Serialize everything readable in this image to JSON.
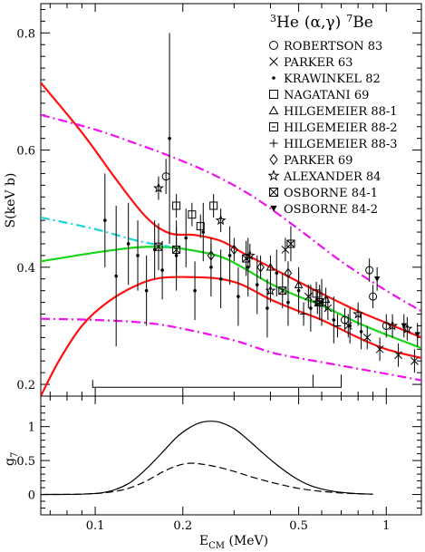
{
  "chart_data": [
    {
      "type": "scatter",
      "panel": "upper",
      "title_parts": {
        "mass_a": "3",
        "element_a": "He",
        "reaction": "(α,γ)",
        "mass_b": "7",
        "element_b": "Be"
      },
      "xlabel": {
        "main": "E",
        "sub": "CM",
        "unit": " (MeV)"
      },
      "ylabel": "S(keV b)",
      "x_scale": "log",
      "xlim": [
        0.065,
        1.32
      ],
      "ylim": [
        0.18,
        0.85
      ],
      "y_ticks": [
        0.2,
        0.4,
        0.6,
        0.8
      ],
      "y_tick_labels": [
        "0.2",
        "0.4",
        "0.6",
        "0.8"
      ],
      "x_ticks": [
        0.1,
        0.2,
        0.5,
        1.0
      ],
      "x_tick_labels": [
        "0.1",
        "0.2",
        "0.5",
        "1"
      ],
      "legend_placement": "top-right",
      "legend": [
        {
          "marker": "circle",
          "label": "ROBERTSON 83"
        },
        {
          "marker": "cross",
          "label": "PARKER 63"
        },
        {
          "marker": "dot",
          "label": "KRAWINKEL 82"
        },
        {
          "marker": "square",
          "label": "NAGATANI 69"
        },
        {
          "marker": "triangle",
          "label": "HILGEMEIER 88-1"
        },
        {
          "marker": "square-notch",
          "label": "HILGEMEIER 88-2"
        },
        {
          "marker": "plus",
          "label": "HILGEMEIER 88-3"
        },
        {
          "marker": "diamond",
          "label": "PARKER 69"
        },
        {
          "marker": "star",
          "label": "ALEXANDER 84"
        },
        {
          "marker": "square-cross",
          "label": "OSBORNE 84-1"
        },
        {
          "marker": "tri-down",
          "label": "OSBORNE 84-2"
        }
      ],
      "bracket": {
        "x_left": 0.098,
        "x_right": 0.7,
        "x_inner": 0.56,
        "y": 0.195
      },
      "curves": [
        {
          "color": "#ff1010",
          "style": "solid",
          "x": [
            0.065,
            0.09,
            0.12,
            0.15,
            0.18,
            0.22,
            0.27,
            0.32,
            0.4,
            0.5,
            0.6,
            0.8,
            1.0,
            1.32
          ],
          "y": [
            0.715,
            0.63,
            0.545,
            0.485,
            0.458,
            0.455,
            0.445,
            0.425,
            0.4,
            0.375,
            0.355,
            0.325,
            0.305,
            0.28
          ]
        },
        {
          "color": "#ff1010",
          "style": "solid",
          "x": [
            0.065,
            0.075,
            0.09,
            0.11,
            0.14,
            0.17,
            0.22,
            0.27,
            0.32,
            0.4,
            0.5,
            0.6,
            0.8,
            1.0,
            1.32
          ],
          "y": [
            0.18,
            0.24,
            0.3,
            0.34,
            0.37,
            0.382,
            0.383,
            0.38,
            0.37,
            0.345,
            0.325,
            0.31,
            0.28,
            0.26,
            0.245
          ]
        },
        {
          "color": "#16d616",
          "style": "solid",
          "x": [
            0.065,
            0.1,
            0.14,
            0.18,
            0.22,
            0.27,
            0.32,
            0.4,
            0.5,
            0.6,
            0.8,
            1.0,
            1.32
          ],
          "y": [
            0.41,
            0.425,
            0.434,
            0.434,
            0.428,
            0.418,
            0.4,
            0.372,
            0.35,
            0.335,
            0.305,
            0.285,
            0.262
          ]
        },
        {
          "color": "#16d6d6",
          "style": "dashdot",
          "x": [
            0.065,
            0.1,
            0.14,
            0.18
          ],
          "y": [
            0.485,
            0.465,
            0.445,
            0.435
          ]
        },
        {
          "color": "#ee10ee",
          "style": "dashdot",
          "x": [
            0.065,
            0.1,
            0.14,
            0.18,
            0.25,
            0.35,
            0.5,
            0.7,
            1.0,
            1.32
          ],
          "y": [
            0.66,
            0.635,
            0.61,
            0.59,
            0.56,
            0.52,
            0.465,
            0.41,
            0.36,
            0.325
          ]
        },
        {
          "color": "#ee10ee",
          "style": "dashdot",
          "x": [
            0.065,
            0.1,
            0.15,
            0.2,
            0.3,
            0.4,
            0.5,
            0.7,
            1.0,
            1.32
          ],
          "y": [
            0.312,
            0.31,
            0.305,
            0.295,
            0.275,
            0.255,
            0.245,
            0.232,
            0.218,
            0.207
          ]
        }
      ],
      "points": [
        {
          "marker": "circle",
          "x": 0.175,
          "y": 0.555,
          "err": 0.03
        },
        {
          "marker": "circle",
          "x": 0.875,
          "y": 0.395,
          "err": 0.02
        },
        {
          "marker": "circle",
          "x": 0.9,
          "y": 0.35,
          "err": 0.02
        },
        {
          "marker": "circle",
          "x": 0.72,
          "y": 0.31,
          "err": 0.02
        },
        {
          "marker": "circle",
          "x": 1.0,
          "y": 0.3,
          "err": 0.02
        },
        {
          "marker": "dot",
          "x": 0.108,
          "y": 0.48,
          "err": 0.08
        },
        {
          "marker": "dot",
          "x": 0.118,
          "y": 0.385,
          "err": 0.12
        },
        {
          "marker": "dot",
          "x": 0.13,
          "y": 0.44,
          "err": 0.07
        },
        {
          "marker": "dot",
          "x": 0.14,
          "y": 0.42,
          "err": 0.06
        },
        {
          "marker": "dot",
          "x": 0.15,
          "y": 0.36,
          "err": 0.06
        },
        {
          "marker": "dot",
          "x": 0.16,
          "y": 0.43,
          "err": 0.05
        },
        {
          "marker": "dot",
          "x": 0.17,
          "y": 0.395,
          "err": 0.05
        },
        {
          "marker": "dot",
          "x": 0.18,
          "y": 0.62,
          "err": 0.18
        },
        {
          "marker": "dot",
          "x": 0.19,
          "y": 0.42,
          "err": 0.06
        },
        {
          "marker": "dot",
          "x": 0.205,
          "y": 0.45,
          "err": 0.05
        },
        {
          "marker": "dot",
          "x": 0.22,
          "y": 0.36,
          "err": 0.05
        },
        {
          "marker": "dot",
          "x": 0.235,
          "y": 0.46,
          "err": 0.05
        },
        {
          "marker": "dot",
          "x": 0.25,
          "y": 0.4,
          "err": 0.05
        },
        {
          "marker": "dot",
          "x": 0.27,
          "y": 0.38,
          "err": 0.05
        },
        {
          "marker": "dot",
          "x": 0.29,
          "y": 0.42,
          "err": 0.05
        },
        {
          "marker": "dot",
          "x": 0.31,
          "y": 0.35,
          "err": 0.05
        },
        {
          "marker": "dot",
          "x": 0.335,
          "y": 0.4,
          "err": 0.05
        },
        {
          "marker": "dot",
          "x": 0.36,
          "y": 0.37,
          "err": 0.05
        },
        {
          "marker": "dot",
          "x": 0.39,
          "y": 0.33,
          "err": 0.05
        },
        {
          "marker": "dot",
          "x": 0.42,
          "y": 0.39,
          "err": 0.04
        },
        {
          "marker": "dot",
          "x": 0.46,
          "y": 0.34,
          "err": 0.04
        },
        {
          "marker": "dot",
          "x": 0.5,
          "y": 0.36,
          "err": 0.04
        },
        {
          "marker": "dot",
          "x": 0.55,
          "y": 0.33,
          "err": 0.04
        },
        {
          "marker": "dot",
          "x": 0.6,
          "y": 0.34,
          "err": 0.04
        },
        {
          "marker": "dot",
          "x": 0.66,
          "y": 0.31,
          "err": 0.04
        },
        {
          "marker": "dot",
          "x": 0.75,
          "y": 0.3,
          "err": 0.03
        },
        {
          "marker": "dot",
          "x": 0.82,
          "y": 0.29,
          "err": 0.03
        },
        {
          "marker": "square",
          "x": 0.19,
          "y": 0.505,
          "err": 0.02
        },
        {
          "marker": "square",
          "x": 0.215,
          "y": 0.49,
          "err": 0.02
        },
        {
          "marker": "square",
          "x": 0.255,
          "y": 0.505,
          "err": 0.02
        },
        {
          "marker": "square",
          "x": 0.23,
          "y": 0.47,
          "err": 0.02
        },
        {
          "marker": "square",
          "x": 0.575,
          "y": 0.355,
          "err": 0.02
        },
        {
          "marker": "triangle",
          "x": 0.4,
          "y": 0.4,
          "err": 0.02
        },
        {
          "marker": "triangle",
          "x": 0.5,
          "y": 0.37,
          "err": 0.02
        },
        {
          "marker": "triangle",
          "x": 0.62,
          "y": 0.345,
          "err": 0.02
        },
        {
          "marker": "cross",
          "x": 0.45,
          "y": 0.43,
          "err": 0.02
        },
        {
          "marker": "cross",
          "x": 0.54,
          "y": 0.35,
          "err": 0.02
        },
        {
          "marker": "cross",
          "x": 0.63,
          "y": 0.33,
          "err": 0.02
        },
        {
          "marker": "cross",
          "x": 0.74,
          "y": 0.3,
          "err": 0.02
        },
        {
          "marker": "cross",
          "x": 0.86,
          "y": 0.28,
          "err": 0.02
        },
        {
          "marker": "cross",
          "x": 0.95,
          "y": 0.26,
          "err": 0.02
        },
        {
          "marker": "cross",
          "x": 1.1,
          "y": 0.25,
          "err": 0.02
        },
        {
          "marker": "cross",
          "x": 1.25,
          "y": 0.24,
          "err": 0.02
        },
        {
          "marker": "plus",
          "x": 0.52,
          "y": 0.32,
          "err": 0.02
        },
        {
          "marker": "plus",
          "x": 0.68,
          "y": 0.3,
          "err": 0.02
        },
        {
          "marker": "diamond",
          "x": 0.25,
          "y": 0.42,
          "err": 0.02
        },
        {
          "marker": "diamond",
          "x": 0.3,
          "y": 0.43,
          "err": 0.02
        },
        {
          "marker": "diamond",
          "x": 0.37,
          "y": 0.4,
          "err": 0.02
        },
        {
          "marker": "diamond",
          "x": 0.46,
          "y": 0.39,
          "err": 0.02
        },
        {
          "marker": "star",
          "x": 0.165,
          "y": 0.535,
          "err": 0.02
        },
        {
          "marker": "star",
          "x": 0.27,
          "y": 0.48,
          "err": 0.02
        },
        {
          "marker": "star",
          "x": 0.34,
          "y": 0.42,
          "err": 0.02
        },
        {
          "marker": "star",
          "x": 0.4,
          "y": 0.36,
          "err": 0.02
        },
        {
          "marker": "star",
          "x": 0.58,
          "y": 0.34,
          "err": 0.02
        },
        {
          "marker": "star",
          "x": 0.8,
          "y": 0.32,
          "err": 0.02
        },
        {
          "marker": "star",
          "x": 1.05,
          "y": 0.3,
          "err": 0.02
        },
        {
          "marker": "star",
          "x": 1.18,
          "y": 0.295,
          "err": 0.02
        },
        {
          "marker": "square-cross",
          "x": 0.165,
          "y": 0.435,
          "err": 0.04
        },
        {
          "marker": "square-cross",
          "x": 0.19,
          "y": 0.43,
          "err": 0.04
        },
        {
          "marker": "square-cross",
          "x": 0.33,
          "y": 0.415,
          "err": 0.03
        },
        {
          "marker": "square-cross",
          "x": 0.44,
          "y": 0.36,
          "err": 0.03
        },
        {
          "marker": "square-cross",
          "x": 0.59,
          "y": 0.34,
          "err": 0.03
        },
        {
          "marker": "square-cross",
          "x": 0.47,
          "y": 0.44,
          "err": 0.03
        },
        {
          "marker": "tri-down",
          "x": 0.93,
          "y": 0.38,
          "err": 0.02
        },
        {
          "marker": "tri-down",
          "x": 1.15,
          "y": 0.3,
          "err": 0.02
        },
        {
          "marker": "tri-down",
          "x": 1.28,
          "y": 0.285,
          "err": 0.02
        }
      ]
    },
    {
      "type": "line",
      "panel": "lower",
      "ylabel": {
        "main": "g",
        "sub": "7"
      },
      "x_scale": "log",
      "xlim": [
        0.065,
        1.32
      ],
      "ylim": [
        -0.3,
        1.45
      ],
      "y_ticks": [
        0,
        0.5,
        1.0
      ],
      "y_tick_labels": [
        "0",
        "0.5",
        "1"
      ],
      "series": [
        {
          "style": "solid",
          "x": [
            0.065,
            0.09,
            0.11,
            0.13,
            0.15,
            0.17,
            0.19,
            0.21,
            0.23,
            0.25,
            0.27,
            0.3,
            0.33,
            0.37,
            0.42,
            0.48,
            0.55,
            0.65,
            0.78,
            0.9
          ],
          "y": [
            0.0,
            0.005,
            0.04,
            0.16,
            0.38,
            0.62,
            0.84,
            0.98,
            1.06,
            1.08,
            1.06,
            0.97,
            0.83,
            0.64,
            0.44,
            0.26,
            0.13,
            0.05,
            0.015,
            0.005
          ]
        },
        {
          "style": "dashed",
          "x": [
            0.065,
            0.09,
            0.11,
            0.13,
            0.15,
            0.17,
            0.19,
            0.21,
            0.23,
            0.26,
            0.3,
            0.35,
            0.42,
            0.5,
            0.6,
            0.75,
            0.9
          ],
          "y": [
            0.0,
            0.005,
            0.03,
            0.09,
            0.2,
            0.33,
            0.42,
            0.46,
            0.45,
            0.41,
            0.34,
            0.25,
            0.16,
            0.09,
            0.045,
            0.015,
            0.005
          ]
        }
      ]
    }
  ]
}
